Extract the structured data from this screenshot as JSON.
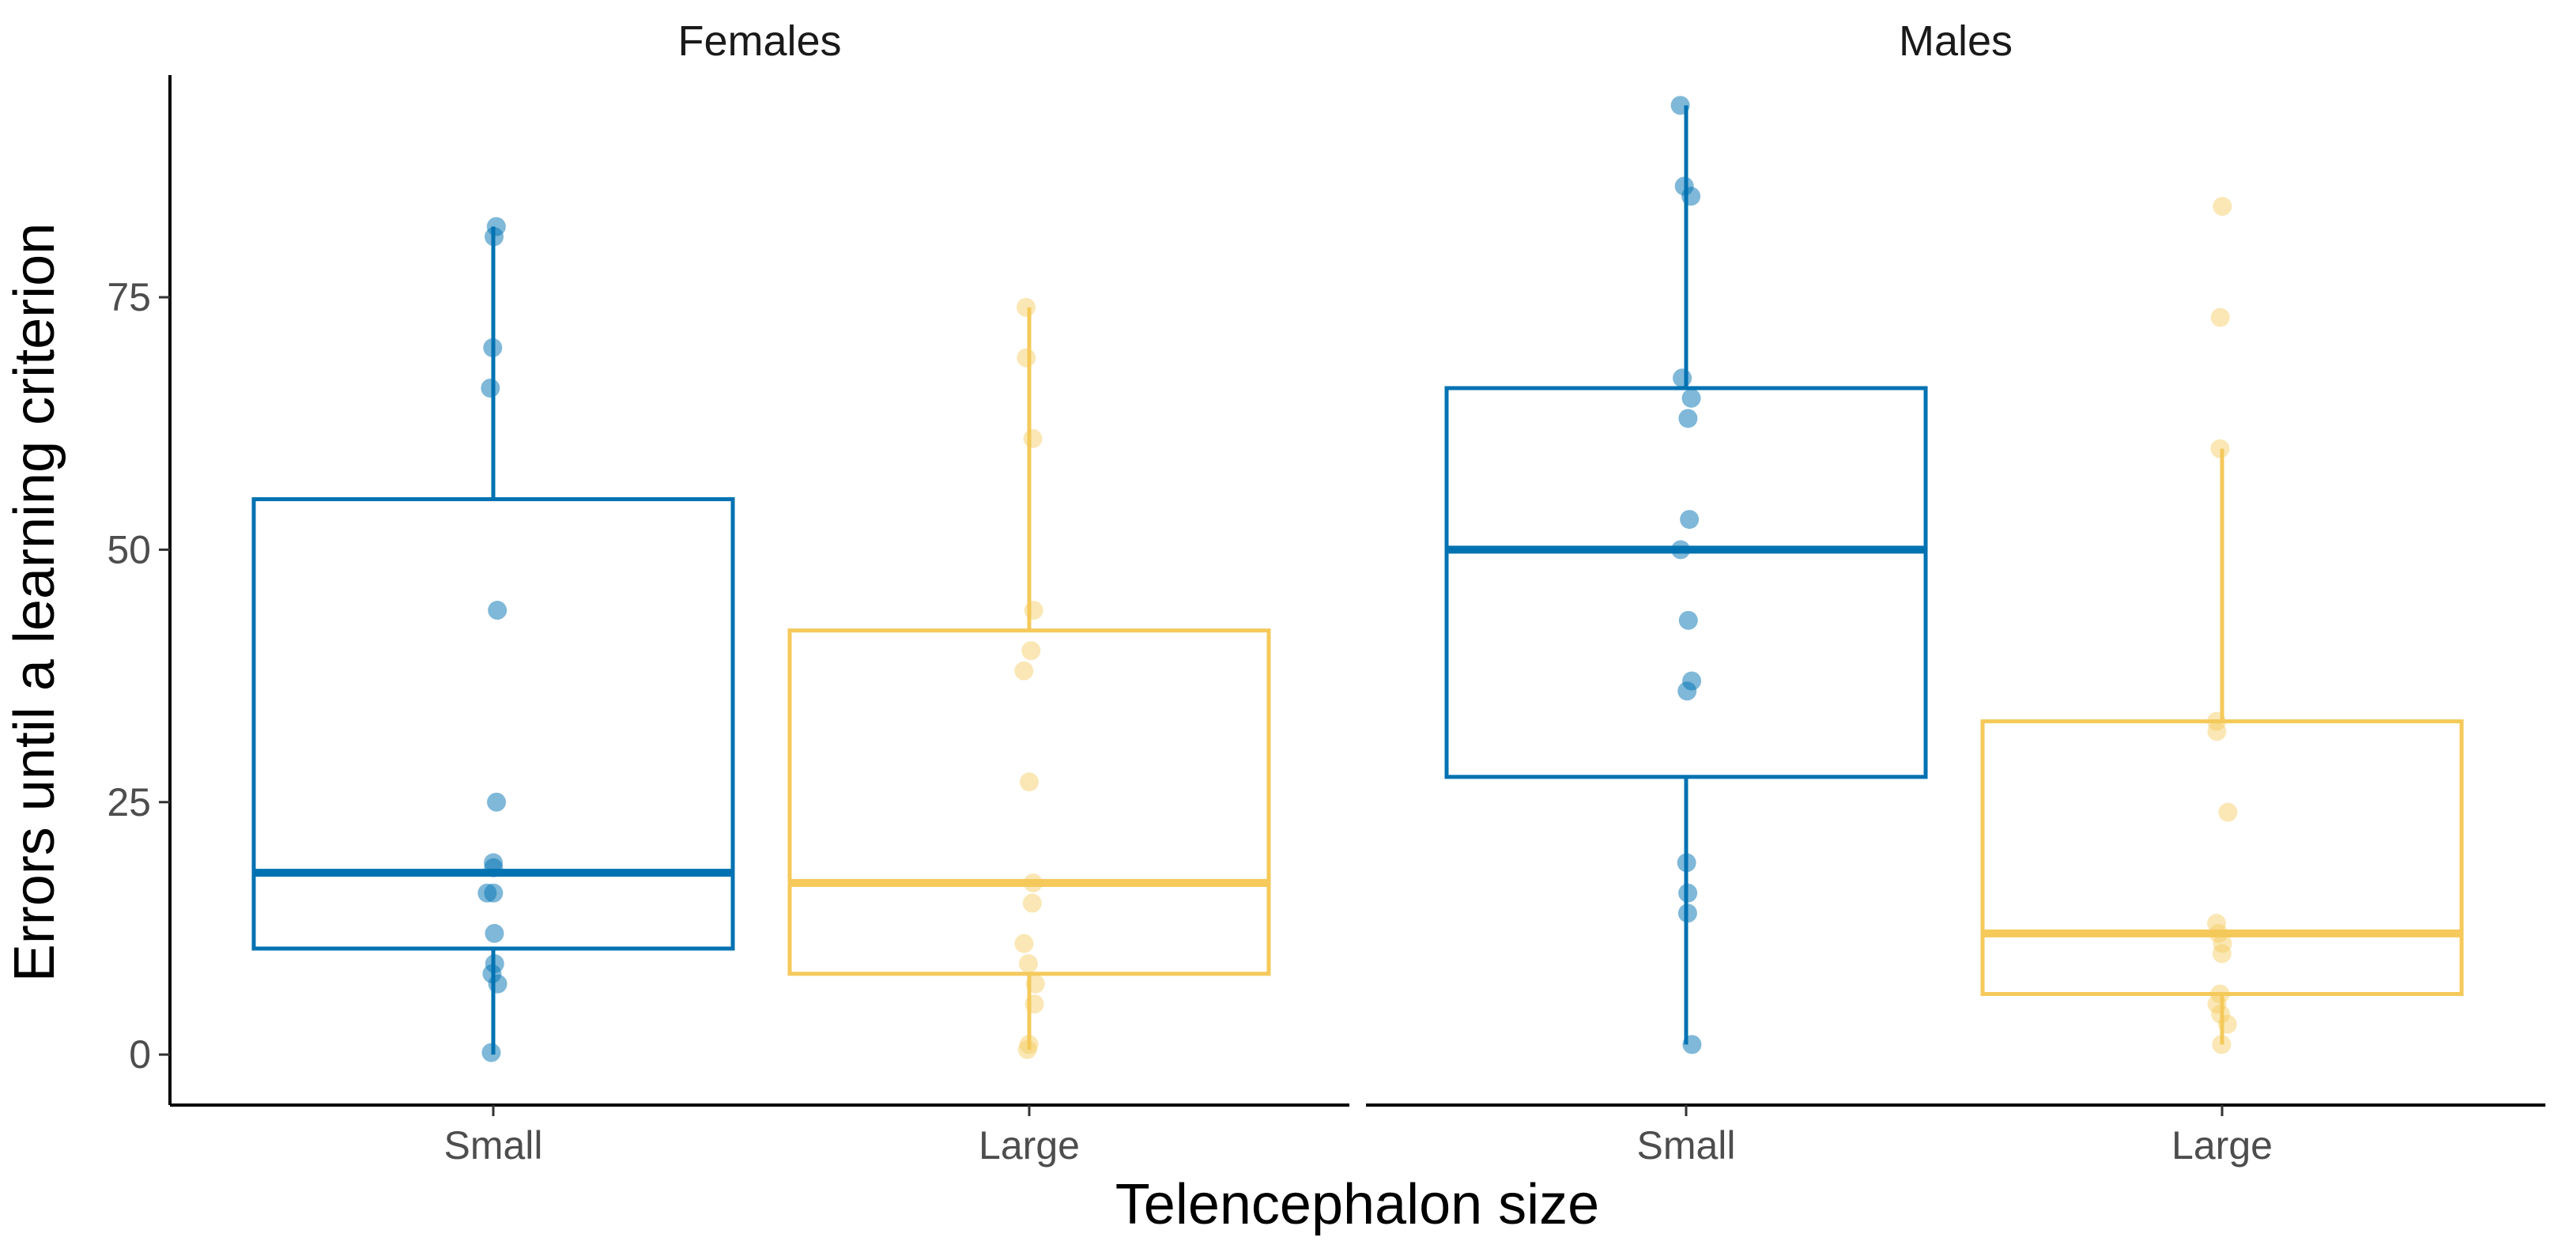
{
  "chart_data": {
    "type": "boxplot",
    "xlabel": "Telencephalon size",
    "ylabel": "Errors until a learning criterion",
    "ylim": [
      -5,
      97
    ],
    "yticks": [
      0,
      25,
      50,
      75
    ],
    "grid": false,
    "colors": {
      "Small": "#0072B2",
      "Large": "#F5C95A"
    },
    "facets": [
      {
        "title": "Females",
        "groups": [
          {
            "category": "Small",
            "box": {
              "lower": 10.5,
              "q1": 10.5,
              "median": 18,
              "q3": 55,
              "whisker_low": 0,
              "whisker_high": 82
            },
            "points": [
              82,
              81,
              70,
              66,
              44,
              25,
              19,
              18.5,
              16,
              16,
              12,
              9,
              8,
              7,
              0.2
            ]
          },
          {
            "category": "Large",
            "box": {
              "q1": 8,
              "median": 17,
              "q3": 42,
              "whisker_low": 0.5,
              "whisker_high": 74
            },
            "points": [
              74,
              69,
              61,
              44,
              40,
              38,
              27,
              17,
              15,
              11,
              9,
              7,
              5,
              1,
              0.5
            ]
          }
        ]
      },
      {
        "title": "Males",
        "groups": [
          {
            "category": "Small",
            "box": {
              "q1": 27.5,
              "median": 50,
              "q3": 66,
              "whisker_low": 1,
              "whisker_high": 94
            },
            "points": [
              94,
              86,
              85,
              67,
              65,
              63,
              53,
              50,
              43,
              37,
              36,
              19,
              16,
              14,
              1
            ]
          },
          {
            "category": "Large",
            "box": {
              "q1": 6,
              "median": 12,
              "q3": 33,
              "whisker_low": 1,
              "whisker_high": 60
            },
            "points": [
              84,
              73,
              60,
              33,
              32,
              24,
              13,
              12,
              11,
              10,
              6,
              5,
              4,
              3,
              1
            ]
          }
        ]
      }
    ]
  }
}
